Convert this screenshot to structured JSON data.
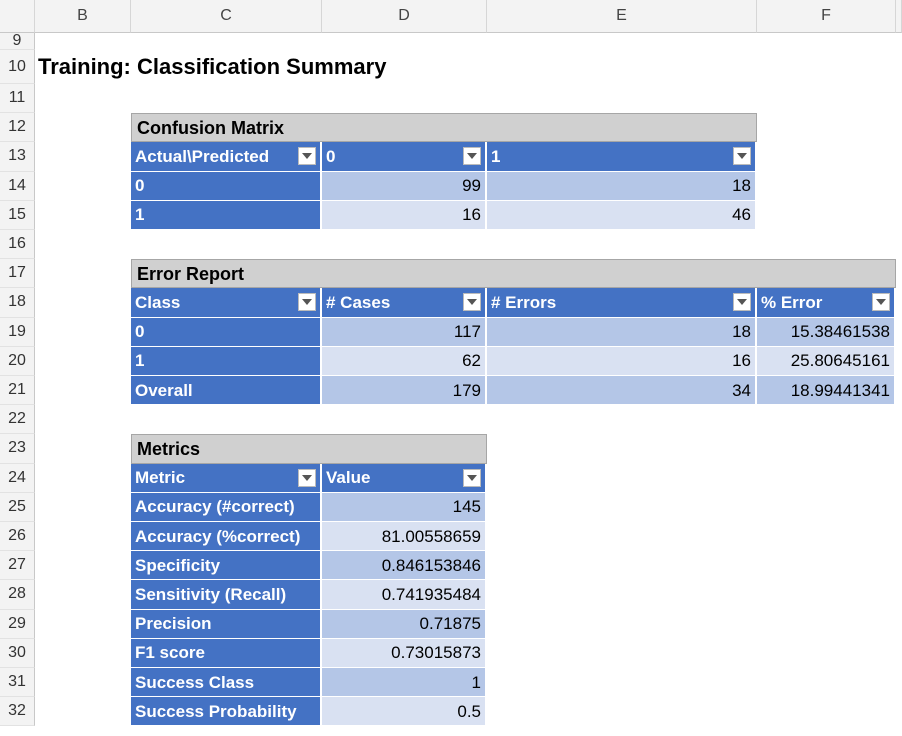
{
  "sheet": {
    "columns": [
      "B",
      "C",
      "D",
      "E",
      "F"
    ],
    "row_numbers": [
      "9",
      "10",
      "11",
      "12",
      "13",
      "14",
      "15",
      "16",
      "17",
      "18",
      "19",
      "20",
      "21",
      "22",
      "23",
      "24",
      "25",
      "26",
      "27",
      "28",
      "29",
      "30",
      "31",
      "32"
    ],
    "title": "Training: Classification Summary"
  },
  "tables": [
    {
      "title": "Confusion Matrix",
      "headers": [
        "Actual\\Predicted",
        "0",
        "1"
      ],
      "rows": [
        [
          "0",
          "99",
          "18"
        ],
        [
          "1",
          "16",
          "46"
        ]
      ]
    },
    {
      "title": "Error Report",
      "headers": [
        "Class",
        "# Cases",
        "# Errors",
        "% Error"
      ],
      "rows": [
        [
          "0",
          "117",
          "18",
          "15.38461538"
        ],
        [
          "1",
          "62",
          "16",
          "25.80645161"
        ],
        [
          "Overall",
          "179",
          "34",
          "18.99441341"
        ]
      ]
    },
    {
      "title": "Metrics",
      "headers": [
        "Metric",
        "Value"
      ],
      "rows": [
        [
          "Accuracy (#correct)",
          "145"
        ],
        [
          "Accuracy (%correct)",
          "81.00558659"
        ],
        [
          "Specificity",
          "0.846153846"
        ],
        [
          "Sensitivity (Recall)",
          "0.741935484"
        ],
        [
          "Precision",
          "0.71875"
        ],
        [
          "F1 score",
          "0.73015873"
        ],
        [
          "Success Class",
          "1"
        ],
        [
          "Success Probability",
          "0.5"
        ]
      ]
    }
  ]
}
